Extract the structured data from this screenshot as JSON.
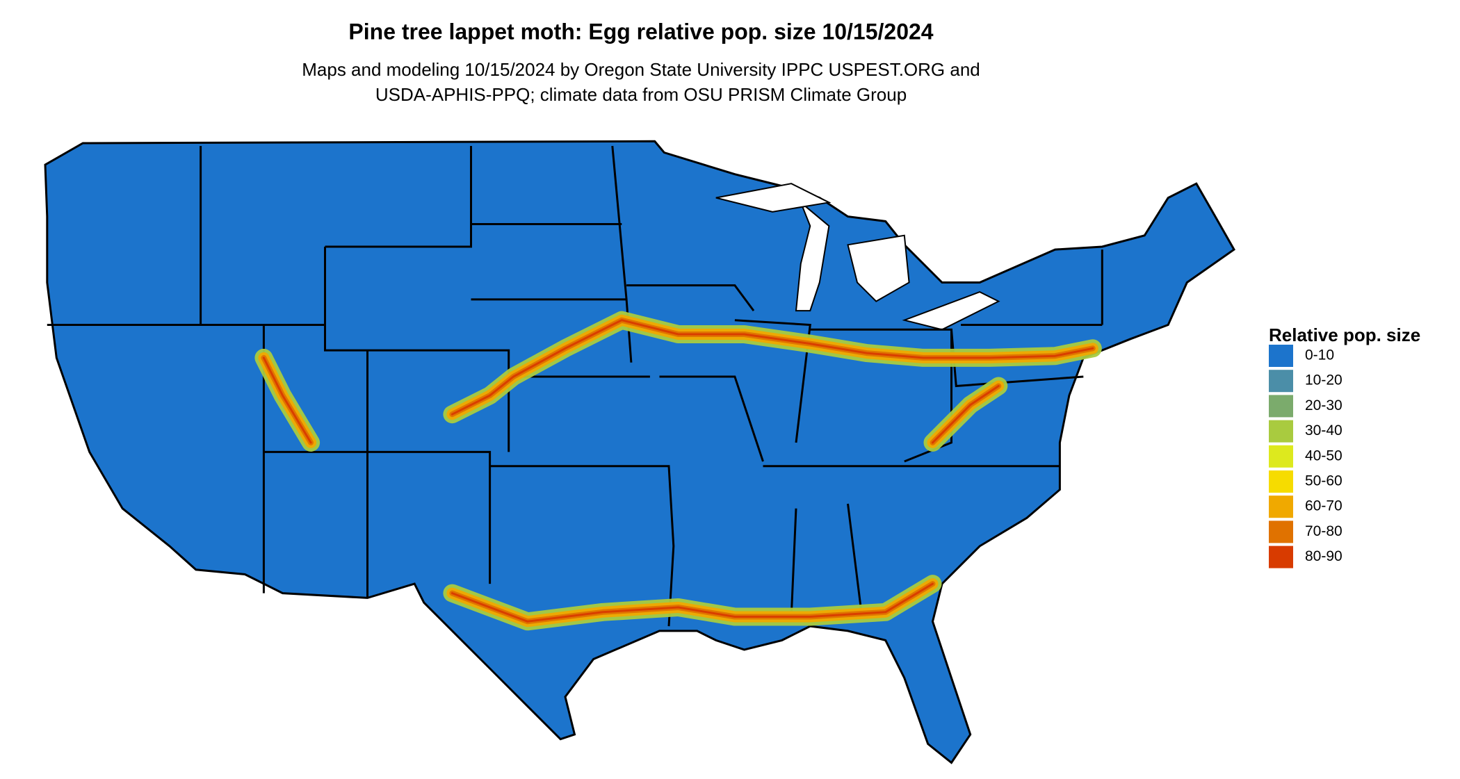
{
  "title": "Pine tree lappet moth: Egg relative pop. size 10/15/2024",
  "subtitle": [
    "Maps and modeling 10/15/2024 by Oregon State University IPPC USPEST.ORG and",
    "USDA-APHIS-PPQ; climate data from OSU PRISM Climate Group"
  ],
  "legend": {
    "title": "Relative pop. size",
    "items": [
      {
        "label": "0-10",
        "color": "#1c74cc"
      },
      {
        "label": "10-20",
        "color": "#4b8ea8"
      },
      {
        "label": "20-30",
        "color": "#7bab6c"
      },
      {
        "label": "30-40",
        "color": "#a9cb3f"
      },
      {
        "label": "40-50",
        "color": "#dde91e"
      },
      {
        "label": "50-60",
        "color": "#f6dc00"
      },
      {
        "label": "60-70",
        "color": "#f0a900"
      },
      {
        "label": "70-80",
        "color": "#e07200"
      },
      {
        "label": "80-90",
        "color": "#d83b00"
      }
    ]
  }
}
